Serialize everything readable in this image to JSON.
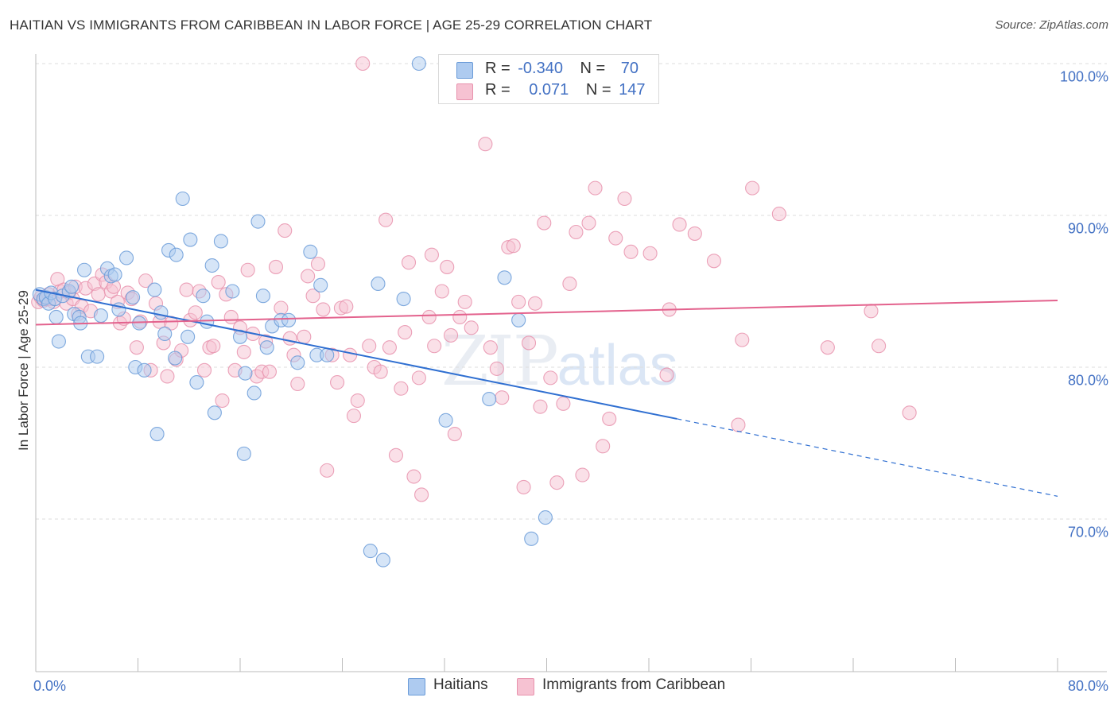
{
  "header": {
    "title": "HAITIAN VS IMMIGRANTS FROM CARIBBEAN IN LABOR FORCE | AGE 25-29 CORRELATION CHART",
    "source": "Source: ZipAtlas.com"
  },
  "watermark": {
    "zip": "ZIP",
    "atlas": "atlas"
  },
  "legend": {
    "r_label": "R =",
    "n_label": "N =",
    "rows": [
      {
        "r": "-0.340",
        "n": "70"
      },
      {
        "r": "0.071",
        "n": "147"
      }
    ]
  },
  "colors": {
    "blue_fill": "#aecbf0",
    "blue_stroke": "#6a9bd8",
    "blue_line": "#2f6fd1",
    "pink_fill": "#f6c2d2",
    "pink_stroke": "#e892ad",
    "pink_line": "#e3628d",
    "tick_text": "#4472c4",
    "grid": "#dddddd"
  },
  "chart_data": {
    "type": "scatter",
    "title": "HAITIAN VS IMMIGRANTS FROM CARIBBEAN IN LABOR FORCE | AGE 25-29 CORRELATION CHART",
    "xlabel": "",
    "ylabel": "In Labor Force | Age 25-29",
    "xlim": [
      0,
      80
    ],
    "ylim": [
      60.5,
      102.5
    ],
    "x_tick_labels": [
      "0.0%",
      "80.0%"
    ],
    "y_ticks": [
      70,
      80,
      90,
      100
    ],
    "y_tick_labels": [
      "70.0%",
      "80.0%",
      "90.0%",
      "100.0%"
    ],
    "grid": "horizontal dashed",
    "legend_position": "bottom",
    "series": [
      {
        "name": "Haitians",
        "r": -0.34,
        "n": 70,
        "trend": {
          "x0": 0,
          "y0": 85.1,
          "x1": 50.2,
          "y1": 76.6,
          "dashed_to_x": 80,
          "dashed_to_y": 71.5
        },
        "points": [
          [
            0.3,
            84.8
          ],
          [
            0.6,
            84.5
          ],
          [
            0.8,
            84.6
          ],
          [
            1.0,
            84.2
          ],
          [
            1.2,
            84.9
          ],
          [
            1.5,
            84.5
          ],
          [
            1.6,
            83.3
          ],
          [
            1.8,
            81.7
          ],
          [
            2.1,
            84.7
          ],
          [
            2.6,
            85.0
          ],
          [
            2.8,
            85.3
          ],
          [
            3.0,
            83.5
          ],
          [
            3.4,
            83.3
          ],
          [
            3.5,
            82.9
          ],
          [
            3.8,
            86.4
          ],
          [
            4.1,
            80.7
          ],
          [
            4.8,
            80.7
          ],
          [
            5.1,
            83.4
          ],
          [
            5.6,
            86.5
          ],
          [
            5.9,
            86.0
          ],
          [
            6.2,
            86.1
          ],
          [
            6.5,
            83.8
          ],
          [
            7.1,
            87.2
          ],
          [
            7.6,
            84.6
          ],
          [
            7.8,
            80.0
          ],
          [
            8.1,
            82.9
          ],
          [
            8.5,
            79.8
          ],
          [
            9.3,
            85.1
          ],
          [
            9.5,
            75.6
          ],
          [
            9.8,
            83.6
          ],
          [
            10.1,
            82.2
          ],
          [
            10.4,
            87.7
          ],
          [
            10.9,
            80.6
          ],
          [
            11.0,
            87.4
          ],
          [
            11.5,
            91.1
          ],
          [
            11.9,
            82.0
          ],
          [
            12.1,
            88.4
          ],
          [
            12.6,
            79.0
          ],
          [
            13.1,
            84.7
          ],
          [
            13.4,
            83.0
          ],
          [
            13.8,
            86.7
          ],
          [
            14.0,
            77.0
          ],
          [
            14.5,
            88.3
          ],
          [
            15.4,
            85.0
          ],
          [
            16.0,
            82.0
          ],
          [
            16.3,
            74.3
          ],
          [
            16.4,
            79.6
          ],
          [
            17.1,
            78.3
          ],
          [
            17.4,
            89.6
          ],
          [
            17.8,
            84.7
          ],
          [
            18.1,
            81.3
          ],
          [
            18.5,
            82.7
          ],
          [
            19.2,
            83.1
          ],
          [
            19.8,
            83.1
          ],
          [
            20.5,
            80.3
          ],
          [
            21.5,
            87.6
          ],
          [
            22.3,
            85.4
          ],
          [
            22.0,
            80.8
          ],
          [
            22.8,
            80.8
          ],
          [
            26.2,
            67.9
          ],
          [
            26.8,
            85.5
          ],
          [
            27.2,
            67.3
          ],
          [
            28.8,
            84.5
          ],
          [
            30.0,
            100.0
          ],
          [
            32.1,
            76.5
          ],
          [
            35.5,
            77.9
          ],
          [
            36.7,
            85.9
          ],
          [
            37.8,
            83.1
          ],
          [
            38.8,
            68.7
          ],
          [
            39.9,
            70.1
          ]
        ]
      },
      {
        "name": "Immigrants from Caribbean",
        "r": 0.071,
        "n": 147,
        "trend": {
          "x0": 0,
          "y0": 82.8,
          "x1": 80,
          "y1": 84.4
        },
        "points": [
          [
            0.2,
            84.3
          ],
          [
            0.4,
            84.6
          ],
          [
            0.6,
            84.4
          ],
          [
            0.8,
            84.5
          ],
          [
            1.0,
            84.8
          ],
          [
            1.2,
            84.5
          ],
          [
            1.4,
            84.3
          ],
          [
            1.7,
            85.8
          ],
          [
            1.9,
            85.0
          ],
          [
            2.2,
            85.1
          ],
          [
            2.4,
            84.2
          ],
          [
            2.6,
            84.9
          ],
          [
            2.9,
            84.5
          ],
          [
            3.1,
            85.3
          ],
          [
            3.3,
            83.5
          ],
          [
            3.6,
            84.0
          ],
          [
            3.9,
            85.2
          ],
          [
            4.3,
            83.7
          ],
          [
            4.6,
            85.5
          ],
          [
            4.9,
            84.8
          ],
          [
            5.2,
            86.1
          ],
          [
            5.5,
            85.6
          ],
          [
            5.9,
            85.0
          ],
          [
            6.1,
            85.3
          ],
          [
            6.4,
            84.3
          ],
          [
            6.6,
            82.9
          ],
          [
            6.9,
            83.2
          ],
          [
            7.2,
            84.9
          ],
          [
            7.5,
            84.5
          ],
          [
            7.9,
            81.3
          ],
          [
            8.2,
            83.0
          ],
          [
            8.6,
            85.7
          ],
          [
            9.0,
            79.8
          ],
          [
            9.4,
            84.2
          ],
          [
            9.7,
            83.0
          ],
          [
            10.0,
            81.6
          ],
          [
            10.3,
            79.4
          ],
          [
            10.6,
            82.9
          ],
          [
            11.0,
            80.5
          ],
          [
            11.4,
            81.1
          ],
          [
            11.8,
            85.1
          ],
          [
            12.1,
            83.1
          ],
          [
            12.5,
            83.6
          ],
          [
            12.8,
            85.0
          ],
          [
            13.2,
            79.8
          ],
          [
            13.6,
            81.3
          ],
          [
            13.9,
            81.4
          ],
          [
            14.3,
            85.6
          ],
          [
            14.6,
            77.8
          ],
          [
            14.9,
            84.8
          ],
          [
            15.3,
            83.3
          ],
          [
            15.6,
            79.8
          ],
          [
            16.0,
            82.6
          ],
          [
            16.3,
            81.0
          ],
          [
            16.6,
            86.4
          ],
          [
            17.0,
            82.2
          ],
          [
            17.3,
            79.4
          ],
          [
            17.7,
            79.7
          ],
          [
            18.0,
            81.7
          ],
          [
            18.3,
            79.7
          ],
          [
            18.8,
            86.6
          ],
          [
            19.2,
            83.9
          ],
          [
            19.5,
            89.0
          ],
          [
            19.9,
            81.9
          ],
          [
            20.2,
            80.8
          ],
          [
            20.5,
            78.9
          ],
          [
            21.0,
            82.0
          ],
          [
            21.3,
            86.0
          ],
          [
            21.7,
            84.7
          ],
          [
            22.1,
            86.8
          ],
          [
            22.5,
            83.8
          ],
          [
            22.8,
            73.2
          ],
          [
            23.2,
            80.8
          ],
          [
            23.6,
            79.0
          ],
          [
            23.9,
            83.9
          ],
          [
            24.3,
            84.0
          ],
          [
            24.6,
            80.8
          ],
          [
            24.9,
            76.8
          ],
          [
            25.2,
            77.8
          ],
          [
            25.6,
            100.0
          ],
          [
            26.1,
            81.4
          ],
          [
            26.5,
            80.0
          ],
          [
            27.0,
            79.7
          ],
          [
            27.4,
            89.7
          ],
          [
            27.7,
            81.3
          ],
          [
            28.2,
            74.2
          ],
          [
            28.6,
            78.6
          ],
          [
            28.9,
            82.3
          ],
          [
            29.2,
            86.9
          ],
          [
            29.6,
            72.8
          ],
          [
            30.0,
            79.3
          ],
          [
            30.2,
            71.6
          ],
          [
            30.8,
            83.3
          ],
          [
            31.0,
            87.4
          ],
          [
            31.2,
            81.4
          ],
          [
            31.8,
            85.0
          ],
          [
            32.2,
            86.6
          ],
          [
            32.5,
            82.1
          ],
          [
            32.8,
            75.6
          ],
          [
            33.2,
            83.3
          ],
          [
            33.6,
            84.3
          ],
          [
            34.1,
            82.6
          ],
          [
            34.8,
            98.1
          ],
          [
            35.2,
            94.7
          ],
          [
            35.6,
            81.3
          ],
          [
            36.1,
            79.9
          ],
          [
            36.5,
            78.0
          ],
          [
            37.0,
            87.9
          ],
          [
            37.4,
            88.0
          ],
          [
            37.8,
            84.3
          ],
          [
            38.2,
            72.1
          ],
          [
            38.6,
            81.6
          ],
          [
            39.1,
            84.2
          ],
          [
            39.5,
            77.4
          ],
          [
            39.8,
            89.5
          ],
          [
            40.3,
            79.3
          ],
          [
            40.8,
            72.4
          ],
          [
            41.3,
            77.6
          ],
          [
            41.8,
            85.5
          ],
          [
            42.3,
            88.9
          ],
          [
            42.8,
            72.9
          ],
          [
            43.3,
            89.5
          ],
          [
            43.8,
            91.8
          ],
          [
            44.4,
            74.8
          ],
          [
            44.9,
            76.6
          ],
          [
            45.4,
            88.5
          ],
          [
            46.1,
            91.1
          ],
          [
            46.6,
            87.6
          ],
          [
            47.5,
            100.0
          ],
          [
            48.1,
            87.5
          ],
          [
            49.4,
            79.5
          ],
          [
            49.6,
            83.8
          ],
          [
            50.4,
            89.4
          ],
          [
            51.6,
            88.8
          ],
          [
            53.1,
            87.0
          ],
          [
            55.0,
            76.2
          ],
          [
            55.3,
            81.8
          ],
          [
            56.1,
            91.8
          ],
          [
            58.2,
            90.1
          ],
          [
            62.0,
            81.3
          ],
          [
            65.4,
            83.7
          ],
          [
            66.0,
            81.4
          ],
          [
            68.4,
            77.0
          ]
        ]
      }
    ]
  }
}
